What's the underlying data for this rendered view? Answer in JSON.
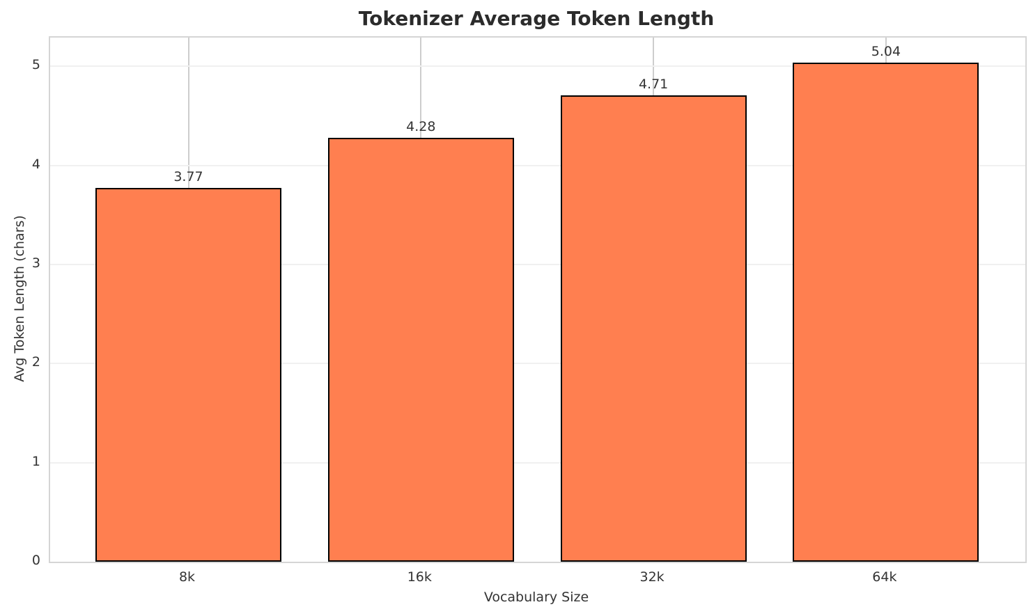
{
  "chart_data": {
    "type": "bar",
    "title": "Tokenizer Average Token Length",
    "categories": [
      "8k",
      "16k",
      "32k",
      "64k"
    ],
    "values": [
      3.77,
      4.28,
      4.71,
      5.04
    ],
    "value_labels": [
      "3.77",
      "4.28",
      "4.71",
      "5.04"
    ],
    "xlabel": "Vocabulary Size",
    "ylabel": "Avg Token Length (chars)",
    "yticks": [
      0,
      1,
      2,
      3,
      4,
      5
    ],
    "ylim": [
      0,
      5.29
    ],
    "grid": true,
    "legend_position": "none",
    "bar_color": "#FF7F50",
    "bar_edge_color": "#000000",
    "text_color": "#333333",
    "title_color": "#2b2b2b",
    "spine_color": "#d5d5d5",
    "gridline_h_color": "#f0f0f0",
    "gridline_v_color": "#cdcdcd",
    "background_color": "#ffffff"
  }
}
